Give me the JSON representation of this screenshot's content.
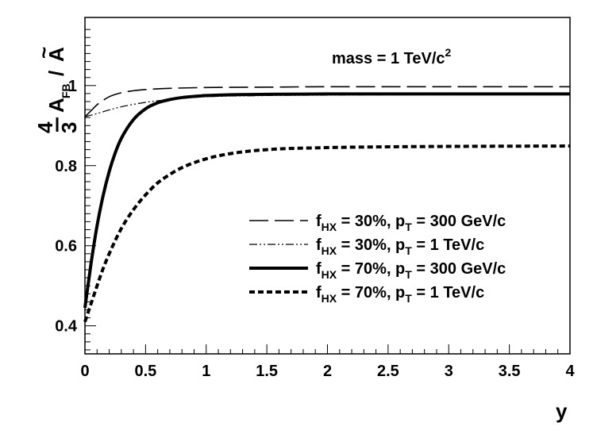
{
  "chart_data": {
    "type": "line",
    "title": "",
    "xlabel": "y",
    "ylabel": "4/3 A_FB / Ã",
    "xlim": [
      0,
      4
    ],
    "ylim": [
      0.33,
      1.17
    ],
    "grid": false,
    "annotation": "mass = 1 TeV/c²",
    "x_ticks": [
      0,
      0.5,
      1,
      1.5,
      2,
      2.5,
      3,
      3.5,
      4
    ],
    "x_tick_labels": [
      "0",
      "0.5",
      "1",
      "1.5",
      "2",
      "2.5",
      "3",
      "3.5",
      "4"
    ],
    "y_ticks": [
      0.4,
      0.6,
      0.8,
      1
    ],
    "y_tick_labels": [
      "0.4",
      "0.6",
      "0.8",
      "1"
    ],
    "legend_position": "bottom-right",
    "series": [
      {
        "name": "f_HX = 30%, p_T = 300 GeV/c",
        "legend_label": {
          "f": "f",
          "f_sub": "HX",
          "mid": " = 30%,  p",
          "p_sub": "T",
          "end": " = 300 GeV/c"
        },
        "style": "long-dash",
        "x": [
          0.0,
          0.05,
          0.1,
          0.15,
          0.2,
          0.3,
          0.4,
          0.5,
          0.7,
          1.0,
          1.5,
          2.0,
          3.0,
          4.0
        ],
        "values": [
          0.922,
          0.937,
          0.952,
          0.963,
          0.972,
          0.982,
          0.987,
          0.99,
          0.993,
          0.995,
          0.996,
          0.997,
          0.997,
          0.997
        ]
      },
      {
        "name": "f_HX = 30%, p_T = 1 TeV/c",
        "legend_label": {
          "f": "f",
          "f_sub": "HX",
          "mid": " = 30%,  p",
          "p_sub": "T",
          "end": " = 1 TeV/c"
        },
        "style": "dash-dot-dot",
        "x": [
          0.0,
          0.1,
          0.2,
          0.3,
          0.4,
          0.5,
          0.6,
          0.7,
          0.8,
          1.0,
          1.5,
          2.0,
          3.0,
          4.0
        ],
        "values": [
          0.922,
          0.93,
          0.939,
          0.947,
          0.953,
          0.958,
          0.962,
          0.965,
          0.968,
          0.972,
          0.975,
          0.976,
          0.977,
          0.977
        ]
      },
      {
        "name": "f_HX = 70%, p_T = 300 GeV/c",
        "legend_label": {
          "f": "f",
          "f_sub": "HX",
          "mid": " = 70%,  p",
          "p_sub": "T",
          "end": " = 300 GeV/c"
        },
        "style": "thick-solid",
        "x": [
          0.0,
          0.05,
          0.1,
          0.15,
          0.2,
          0.25,
          0.3,
          0.4,
          0.5,
          0.6,
          0.7,
          0.8,
          1.0,
          1.2,
          1.5,
          2.0,
          3.0,
          4.0
        ],
        "values": [
          0.445,
          0.555,
          0.65,
          0.725,
          0.785,
          0.832,
          0.868,
          0.915,
          0.942,
          0.957,
          0.965,
          0.97,
          0.975,
          0.977,
          0.978,
          0.979,
          0.979,
          0.979
        ]
      },
      {
        "name": "f_HX = 70%, p_T = 1 TeV/c",
        "legend_label": {
          "f": "f",
          "f_sub": "HX",
          "mid": " = 70%,  p",
          "p_sub": "T",
          "end": " = 1 TeV/c"
        },
        "style": "short-dash",
        "x": [
          0.0,
          0.05,
          0.1,
          0.15,
          0.2,
          0.3,
          0.4,
          0.5,
          0.6,
          0.7,
          0.8,
          1.0,
          1.2,
          1.5,
          2.0,
          2.5,
          3.0,
          4.0
        ],
        "values": [
          0.41,
          0.455,
          0.5,
          0.543,
          0.58,
          0.643,
          0.69,
          0.727,
          0.757,
          0.778,
          0.795,
          0.817,
          0.83,
          0.84,
          0.845,
          0.847,
          0.848,
          0.849
        ]
      }
    ]
  }
}
